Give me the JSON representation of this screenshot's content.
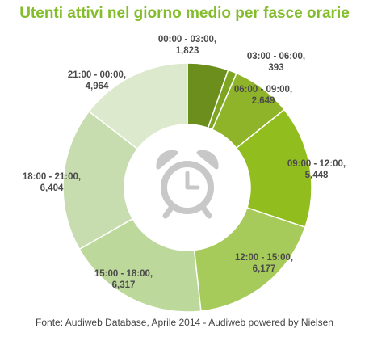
{
  "chart_data": {
    "type": "pie",
    "title": "Utenti attivi nel giorno medio per fasce orarie",
    "categories": [
      "00:00 - 03:00,",
      "03:00 - 06:00,",
      "06:00 - 09:00,",
      "09:00 - 12:00,",
      "12:00 - 15:00,",
      "15:00 - 18:00,",
      "18:00 - 21:00,",
      "21:00 - 00:00,"
    ],
    "values": [
      1823,
      393,
      2649,
      5448,
      6177,
      6317,
      6404,
      4964
    ],
    "value_labels": [
      "1,823",
      "393",
      "2,649",
      "5,448",
      "6,177",
      "6,317",
      "6,404",
      "4,964"
    ],
    "colors": [
      "#6b8e1c",
      "#7ea521",
      "#8fb42a",
      "#92bd1f",
      "#a6cb5a",
      "#bcd89a",
      "#c7ddb0",
      "#dce9cc"
    ],
    "style": "donut",
    "center_icon": "alarm-clock-icon",
    "source": "Fonte: Audiweb Database, Aprile 2014 - Audiweb powered by Nielsen"
  }
}
